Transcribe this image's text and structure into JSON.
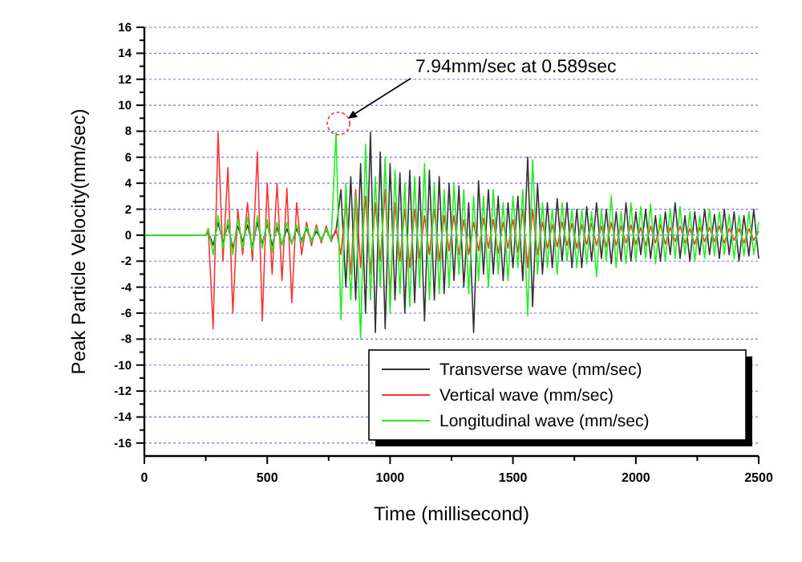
{
  "chart_data": {
    "type": "line",
    "xlabel": "Time (millisecond)",
    "ylabel": "Peak Particle Velocity(mm/sec)",
    "x": [
      0,
      250,
      260,
      280,
      300,
      320,
      340,
      360,
      380,
      400,
      420,
      440,
      460,
      480,
      500,
      520,
      540,
      560,
      580,
      600,
      620,
      640,
      660,
      680,
      700,
      720,
      740,
      760,
      780,
      800,
      820,
      840,
      860,
      880,
      900,
      920,
      940,
      960,
      980,
      1000,
      1020,
      1040,
      1060,
      1080,
      1100,
      1120,
      1140,
      1160,
      1180,
      1200,
      1220,
      1240,
      1260,
      1280,
      1300,
      1320,
      1340,
      1360,
      1380,
      1400,
      1420,
      1440,
      1460,
      1480,
      1500,
      1520,
      1540,
      1560,
      1580,
      1600,
      1620,
      1640,
      1660,
      1680,
      1700,
      1720,
      1740,
      1760,
      1780,
      1800,
      1820,
      1840,
      1860,
      1880,
      1900,
      1920,
      1940,
      1960,
      1980,
      2000,
      2020,
      2040,
      2060,
      2080,
      2100,
      2120,
      2140,
      2160,
      2180,
      2200,
      2220,
      2240,
      2260,
      2280,
      2300,
      2320,
      2340,
      2360,
      2380,
      2400,
      2420,
      2440,
      2460,
      2480,
      2500
    ],
    "series": [
      {
        "name": "Transverse wave (mm/sec)",
        "color": "#333333",
        "values": [
          0,
          0,
          0.3,
          -0.8,
          1,
          -0.6,
          0.8,
          -1,
          0.7,
          -0.5,
          0.8,
          -0.9,
          1,
          -0.7,
          0.9,
          -0.8,
          0.6,
          -0.7,
          0.5,
          -0.6,
          0.5,
          -0.4,
          0.5,
          -0.4,
          0.3,
          -0.3,
          0.4,
          -0.3,
          0.3,
          3.5,
          -4,
          4.5,
          -5,
          5.5,
          -6,
          7.9,
          -7.5,
          6.4,
          -7.2,
          5.5,
          -5,
          4.8,
          -6,
          5,
          -5.2,
          4.5,
          -6.6,
          5,
          -5,
          4.5,
          -4.5,
          4,
          -3.5,
          3.8,
          -4,
          2.5,
          -7.5,
          4.2,
          -3,
          3.5,
          -3,
          3,
          -3.5,
          2.5,
          -2.5,
          3,
          -3.5,
          6,
          -5.5,
          4,
          -3,
          2.5,
          -2.5,
          2.8,
          -2,
          2.5,
          -2.5,
          2,
          -2.5,
          2.2,
          -2,
          2.5,
          -1.8,
          2,
          -2.2,
          1.8,
          -2,
          2.5,
          -2,
          1.8,
          -1.5,
          2,
          -1.8,
          1.5,
          -2,
          1.8,
          -1.5,
          2.5,
          -1.8,
          1.5,
          -2,
          1.8,
          -1.5,
          2,
          -1.5,
          1.6,
          -1.8,
          2,
          -1.5,
          1.8,
          -2,
          1.5,
          -1.6,
          2,
          -1.8
        ]
      },
      {
        "name": "Vertical wave (mm/sec)",
        "color": "#ff3333",
        "values": [
          0,
          0,
          0.5,
          -7.2,
          7.9,
          -2,
          5.2,
          -6,
          2,
          -1.5,
          2.5,
          -2,
          6.4,
          -6.6,
          4,
          -3,
          4,
          -3.5,
          3.6,
          -5.2,
          2.5,
          -1.5,
          1,
          -0.8,
          0.8,
          -0.6,
          0.7,
          -0.5,
          0.5,
          -1.5,
          2.5,
          -3,
          3.5,
          -2.5,
          3,
          -3,
          2.5,
          -2,
          3.5,
          -4.5,
          2.5,
          -2,
          2,
          -2.5,
          2,
          -1.8,
          1.5,
          -1.5,
          2,
          -2,
          1.5,
          -1.2,
          1.5,
          -1.5,
          1.2,
          -1.5,
          1,
          -1.2,
          1.3,
          -1,
          1.2,
          -1.4,
          1,
          -1,
          1.2,
          -1.3,
          2,
          -2.5,
          2,
          -1.5,
          1,
          -1,
          0.8,
          -0.9,
          1,
          -0.8,
          0.9,
          -1,
          0.8,
          -0.7,
          0.9,
          -0.8,
          0.7,
          -0.9,
          1,
          -0.8,
          0.7,
          -0.6,
          0.8,
          -0.7,
          0.6,
          -0.8,
          0.7,
          -0.6,
          0.8,
          -0.7,
          0.6,
          -0.5,
          0.7,
          -0.6,
          0.5,
          -0.7,
          0.6,
          -0.5,
          0.6,
          -0.5,
          0.7,
          -0.6,
          0.5,
          -0.4,
          0.5,
          -0.6,
          0.5,
          -0.4,
          0.3
        ]
      },
      {
        "name": "Longitudinal wave (mm/sec)",
        "color": "#22ee22",
        "values": [
          0,
          0,
          0.5,
          -1.5,
          1.5,
          -1,
          1.2,
          -1.5,
          1.3,
          -1,
          1.4,
          -1.2,
          1.5,
          -1,
          1.2,
          -1.3,
          1,
          -0.8,
          1,
          -0.7,
          0.8,
          -0.6,
          0.7,
          -0.5,
          0.6,
          -0.4,
          0.5,
          -0.4,
          7.9,
          -6.5,
          4,
          -5,
          3,
          -8,
          7,
          -5,
          4.5,
          -4,
          6,
          -6,
          5,
          -4.5,
          4,
          -5.5,
          4.5,
          -4,
          5.5,
          -5,
          4,
          -4.5,
          3.5,
          -4,
          4,
          -3,
          3.5,
          -4.5,
          3,
          -3.5,
          3,
          -4,
          3.5,
          -3,
          2.5,
          -3.5,
          3,
          -2.5,
          3.5,
          -6.2,
          5.8,
          -3,
          2.5,
          -2.5,
          2,
          -3,
          2.5,
          -2,
          2,
          -2.5,
          2,
          -2.2,
          1.8,
          -3.2,
          2,
          -2,
          3,
          -2.5,
          1.8,
          -2.2,
          2.5,
          -2,
          2.2,
          -1.8,
          2.4,
          -2.2,
          1.6,
          -2,
          2,
          -1.8,
          2.2,
          -1.5,
          1.8,
          -2,
          1.5,
          -1.8,
          2,
          -1.6,
          1.8,
          -1.5,
          1.6,
          -1.8,
          1.5,
          -1.6,
          1.8,
          -1.5,
          1
        ]
      }
    ],
    "xlim": [
      0,
      2500
    ],
    "xticks": [
      0,
      {
        "value": 250,
        "label": null
      },
      500,
      {
        "value": 750,
        "label": null
      },
      1000,
      {
        "value": 1250,
        "label": null
      },
      1500,
      {
        "value": 1750,
        "label": null
      },
      2000,
      {
        "value": 2250,
        "label": null
      },
      2500
    ],
    "ylim": [
      -17,
      16
    ],
    "yticks": [
      -16,
      {
        "value": -15,
        "label": null
      },
      -14,
      {
        "value": -13,
        "label": null
      },
      -12,
      {
        "value": -11,
        "label": null
      },
      -10,
      {
        "value": -9,
        "label": null
      },
      -8,
      {
        "value": -7,
        "label": null
      },
      -6,
      {
        "value": -5,
        "label": null
      },
      -4,
      {
        "value": -3,
        "label": null
      },
      -2,
      {
        "value": -1,
        "label": null
      },
      0,
      {
        "value": 1,
        "label": null
      },
      2,
      {
        "value": 3,
        "label": null
      },
      4,
      {
        "value": 5,
        "label": null
      },
      6,
      {
        "value": 7,
        "label": null
      },
      8,
      {
        "value": 9,
        "label": null
      },
      10,
      {
        "value": 11,
        "label": null
      },
      12,
      {
        "value": 13,
        "label": null
      },
      14,
      {
        "value": 15,
        "label": null
      },
      16
    ],
    "grid": "y",
    "legend": "bottom right",
    "line_style": "solid",
    "annotations": [
      {
        "text": "7.94mm/sec at 0.589sec",
        "x": 790,
        "y": 8.6
      }
    ]
  }
}
